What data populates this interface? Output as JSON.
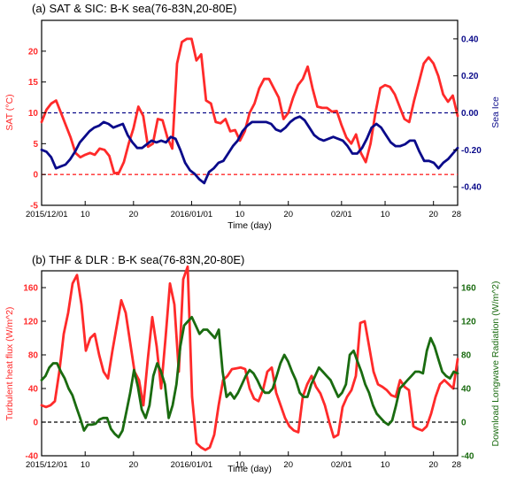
{
  "chart_data": [
    {
      "type": "line",
      "title": "(a) SAT & SIC: B-K sea(76-83N,20-80E)",
      "xlabel": "Time (day)",
      "x_ticks": [
        "2015/12/01",
        "10",
        "20",
        "2016/01/01",
        "10",
        "20",
        "02/01",
        "10",
        "20",
        "28"
      ],
      "left_axis": {
        "label": "SAT (°C)",
        "range": [
          -5,
          25
        ],
        "ticks": [
          "-5",
          "0",
          "5",
          "10",
          "15",
          "20"
        ],
        "color": "#ff2a2a"
      },
      "right_axis": {
        "label": "Sea Ice",
        "range": [
          -0.5,
          0.5
        ],
        "ticks": [
          "-0.40",
          "-0.20",
          "0.00",
          "0.20",
          "0.40"
        ],
        "color": "#0a0a8a"
      },
      "reference_lines": [
        {
          "axis": "left",
          "value": 0,
          "color": "#ff2a2a",
          "style": "dashed"
        },
        {
          "axis": "right",
          "value": 0.0,
          "color": "#0a0a8a",
          "style": "dashed"
        }
      ],
      "series": [
        {
          "axis": "left",
          "color": "#ff2a2a",
          "values": [
            8.5,
            10.5,
            11.5,
            12,
            10,
            8,
            6,
            3.5,
            2.8,
            3.2,
            3.5,
            3.2,
            4.2,
            4,
            3,
            0.2,
            0.3,
            2,
            5,
            7.5,
            11,
            9.5,
            4.5,
            5,
            9,
            8.8,
            6,
            4.2,
            18,
            21.5,
            22,
            22,
            18.5,
            19.5,
            12,
            11.5,
            8.5,
            8.3,
            9,
            7,
            7.2,
            5.5,
            7,
            10,
            11.5,
            14,
            15.5,
            15.5,
            14,
            12.5,
            9,
            10,
            12.5,
            14.5,
            15.5,
            17.5,
            14,
            11,
            10.8,
            10.8,
            10.2,
            10.3,
            8,
            6,
            5,
            6.5,
            3.5,
            2,
            5,
            10,
            14,
            14.5,
            14.2,
            13,
            11,
            9,
            8.5,
            12,
            15,
            18,
            19,
            18,
            16,
            13,
            11.8,
            12.8,
            9.5
          ]
        },
        {
          "axis": "right",
          "color": "#0a0a8a",
          "values": [
            -0.2,
            -0.21,
            -0.24,
            -0.3,
            -0.29,
            -0.28,
            -0.25,
            -0.21,
            -0.16,
            -0.13,
            -0.1,
            -0.08,
            -0.07,
            -0.05,
            -0.06,
            -0.08,
            -0.07,
            -0.06,
            -0.12,
            -0.16,
            -0.19,
            -0.19,
            -0.17,
            -0.15,
            -0.16,
            -0.15,
            -0.16,
            -0.13,
            -0.14,
            -0.2,
            -0.27,
            -0.31,
            -0.33,
            -0.36,
            -0.38,
            -0.32,
            -0.3,
            -0.27,
            -0.26,
            -0.22,
            -0.18,
            -0.15,
            -0.1,
            -0.07,
            -0.05,
            -0.05,
            -0.05,
            -0.05,
            -0.06,
            -0.09,
            -0.1,
            -0.08,
            -0.05,
            -0.03,
            -0.02,
            -0.04,
            -0.08,
            -0.12,
            -0.14,
            -0.15,
            -0.14,
            -0.13,
            -0.14,
            -0.15,
            -0.18,
            -0.22,
            -0.22,
            -0.19,
            -0.14,
            -0.08,
            -0.06,
            -0.08,
            -0.12,
            -0.16,
            -0.18,
            -0.18,
            -0.17,
            -0.15,
            -0.15,
            -0.21,
            -0.26,
            -0.26,
            -0.27,
            -0.3,
            -0.27,
            -0.25,
            -0.22,
            -0.19
          ]
        }
      ],
      "grid": false
    },
    {
      "type": "line",
      "title": "(b) THF & DLR : B-K sea(76-83N,20-80E)",
      "xlabel": "Time (day)",
      "x_ticks": [
        "2015/12/01",
        "10",
        "20",
        "2016/01/01",
        "10",
        "20",
        "02/01",
        "10",
        "20",
        "28"
      ],
      "left_axis": {
        "label": "Turbulent heat flux (W/m^2)",
        "range": [
          -40,
          180
        ],
        "ticks": [
          "-40",
          "0",
          "40",
          "80",
          "120",
          "160"
        ],
        "color": "#ff2a2a"
      },
      "right_axis": {
        "label": "Download Longwave Radiation (W/m^2)",
        "range": [
          -40,
          180
        ],
        "ticks": [
          "-40",
          "0",
          "40",
          "80",
          "120",
          "160"
        ],
        "color": "#1a6b10"
      },
      "reference_lines": [
        {
          "axis": "left",
          "value": 0,
          "color": "#000000",
          "style": "dashed"
        }
      ],
      "series": [
        {
          "axis": "left",
          "color": "#ff2a2a",
          "values": [
            20,
            18,
            20,
            25,
            60,
            105,
            130,
            165,
            175,
            140,
            85,
            100,
            105,
            80,
            60,
            52,
            85,
            115,
            145,
            130,
            95,
            60,
            50,
            20,
            75,
            125,
            90,
            40,
            100,
            165,
            140,
            60,
            170,
            185,
            30,
            -25,
            -30,
            -33,
            -30,
            -15,
            20,
            50,
            55,
            63,
            64,
            65,
            63,
            40,
            28,
            25,
            38,
            60,
            65,
            35,
            20,
            5,
            -5,
            -10,
            -12,
            30,
            45,
            55,
            42,
            34,
            20,
            0,
            -18,
            -15,
            18,
            30,
            38,
            55,
            118,
            120,
            90,
            60,
            45,
            42,
            38,
            32,
            30,
            50,
            42,
            38,
            -5,
            -8,
            -10,
            -5,
            10,
            30,
            45,
            50,
            45,
            40,
            75
          ]
        },
        {
          "axis": "right",
          "color": "#1a6b10",
          "values": [
            50,
            55,
            65,
            70,
            70,
            60,
            52,
            40,
            32,
            18,
            5,
            -10,
            -3,
            -3,
            -2,
            3,
            5,
            5,
            -8,
            -14,
            -18,
            -10,
            12,
            35,
            62,
            42,
            15,
            5,
            20,
            55,
            70,
            60,
            45,
            5,
            20,
            45,
            90,
            115,
            120,
            125,
            115,
            105,
            110,
            110,
            105,
            100,
            110,
            60,
            30,
            35,
            28,
            35,
            45,
            55,
            62,
            58,
            50,
            40,
            35,
            35,
            40,
            55,
            70,
            80,
            72,
            60,
            50,
            35,
            30,
            30,
            45,
            55,
            65,
            60,
            55,
            50,
            40,
            30,
            35,
            45,
            80,
            85,
            72,
            60,
            45,
            35,
            20,
            10,
            5,
            0,
            -3,
            2,
            20,
            40,
            45,
            50,
            55,
            60,
            60,
            58,
            85,
            100,
            90,
            75,
            60,
            55,
            52,
            60,
            58
          ]
        }
      ],
      "grid": false
    }
  ]
}
